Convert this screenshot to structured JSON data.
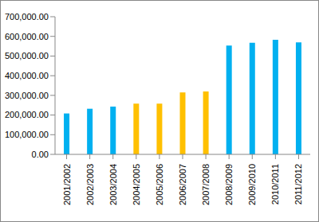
{
  "chart_data": {
    "type": "bar",
    "categories": [
      "2001/2002",
      "2002/2003",
      "2003/2004",
      "2004/2005",
      "2005/2006",
      "2006/2007",
      "2007/2008",
      "2008/2009",
      "2009/2010",
      "2010/2011",
      "2011/2012"
    ],
    "values": [
      208000,
      232000,
      243000,
      258000,
      258000,
      315000,
      320000,
      553000,
      567000,
      583000,
      570000
    ],
    "colors": [
      "#00b0f0",
      "#00b0f0",
      "#00b0f0",
      "#ffc000",
      "#ffc000",
      "#ffc000",
      "#ffc000",
      "#00b0f0",
      "#00b0f0",
      "#00b0f0",
      "#00b0f0"
    ],
    "ylim": [
      0,
      700000
    ],
    "yticks": [
      {
        "value": 0,
        "label": "0.00"
      },
      {
        "value": 100000,
        "label": "100,000.00"
      },
      {
        "value": 200000,
        "label": "200,000.00"
      },
      {
        "value": 300000,
        "label": "300,000.00"
      },
      {
        "value": 400000,
        "label": "400,000.00"
      },
      {
        "value": 500000,
        "label": "500,000.00"
      },
      {
        "value": 600000,
        "label": "600,000.00"
      },
      {
        "value": 700000,
        "label": "700,000.00"
      }
    ],
    "grid": false
  }
}
